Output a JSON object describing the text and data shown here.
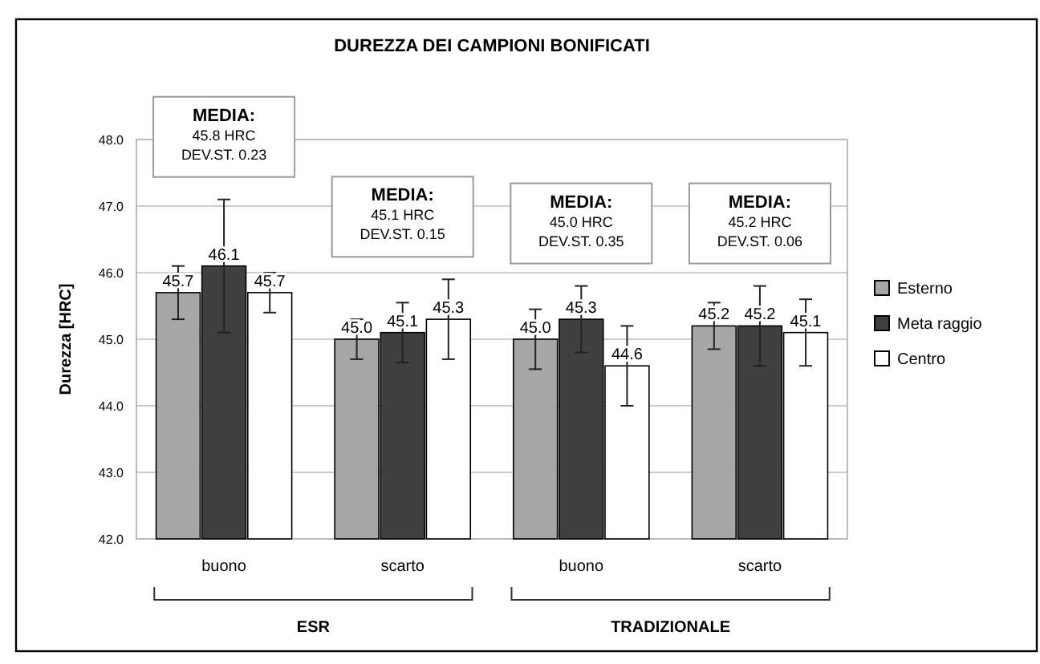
{
  "chart_data": {
    "type": "bar",
    "title": "DUREZZA DEI CAMPIONI BONIFICATI",
    "ylabel": "Durezza [HRC]",
    "categories": [
      "buono",
      "scarto",
      "buono",
      "scarto"
    ],
    "series": [
      {
        "name": "Esterno",
        "color": "#a6a6a6",
        "values": [
          45.7,
          45.0,
          45.0,
          45.2
        ],
        "errors": [
          0.4,
          0.3,
          0.45,
          0.35
        ],
        "value_labels": [
          "45.7",
          "45.0",
          "45.0",
          "45.2"
        ]
      },
      {
        "name": "Meta raggio",
        "color": "#404040",
        "values": [
          46.1,
          45.1,
          45.3,
          45.2
        ],
        "errors": [
          1.0,
          0.45,
          0.5,
          0.6
        ],
        "value_labels": [
          "46.1",
          "45.1",
          "45.3",
          "45.2"
        ]
      },
      {
        "name": "Centro",
        "color": "#ffffff",
        "values": [
          45.7,
          45.3,
          44.6,
          45.1
        ],
        "errors": [
          0.3,
          0.6,
          0.6,
          0.5
        ],
        "value_labels": [
          "45.7",
          "45.3",
          "44.6",
          "45.1"
        ]
      }
    ],
    "ylim": [
      42,
      48
    ],
    "yticks": [
      {
        "value": 42,
        "label": "42.0"
      },
      {
        "value": 43,
        "label": "43.0"
      },
      {
        "value": 44,
        "label": "44.0"
      },
      {
        "value": 45,
        "label": "45.0"
      },
      {
        "value": 46,
        "label": "46.0"
      },
      {
        "value": 47,
        "label": "47.0"
      },
      {
        "value": 48,
        "label": "48.0"
      }
    ],
    "grid": "y",
    "legend": "right",
    "annotations": [
      "ESR",
      "TRADIZIONALE",
      "MEDIA:\n45.8 HRC\nDEV.ST. 0.23",
      "MEDIA:\n45.1 HRC\nDEV.ST. 0.15",
      "MEDIA:\n45.0 HRC\nDEV.ST. 0.35",
      "MEDIA:\n45.2 HRC\nDEV.ST. 0.06"
    ]
  }
}
